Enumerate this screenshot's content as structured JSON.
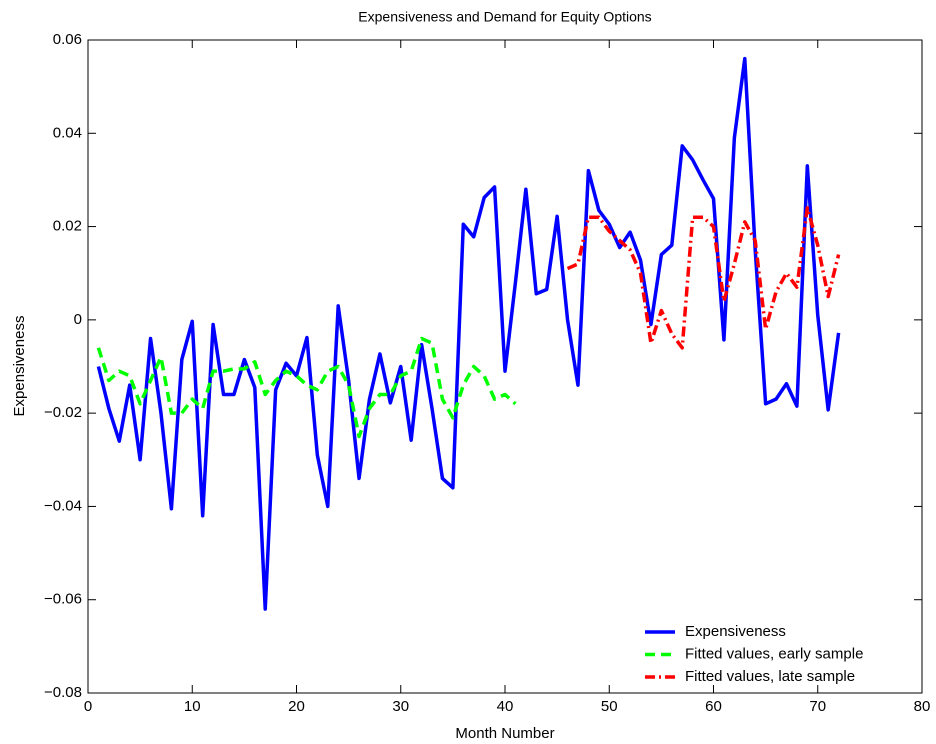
{
  "chart_data": {
    "type": "line",
    "title": "Expensiveness and Demand for Equity Options",
    "x_label": "Month Number",
    "y_label": "Expensiveness",
    "xlim": [
      0,
      80
    ],
    "xticks": [
      0,
      10,
      20,
      30,
      40,
      50,
      60,
      70,
      80
    ],
    "ylim": [
      -0.08,
      0.06
    ],
    "yticks": [
      {
        "value": -0.08,
        "label": "−0.08"
      },
      {
        "value": -0.06,
        "label": "−0.06"
      },
      {
        "value": -0.04,
        "label": "−0.04"
      },
      {
        "value": -0.02,
        "label": "−0.02"
      },
      0,
      0.02,
      0.04,
      0.06
    ],
    "grid": false,
    "legend_position": "lower right",
    "series": [
      {
        "name": "Expensiveness",
        "color": "#0000ff",
        "style": "solid",
        "x": [
          1,
          2,
          3,
          4,
          5,
          6,
          7,
          8,
          9,
          10,
          11,
          12,
          13,
          14,
          15,
          16,
          17,
          18,
          19,
          20,
          21,
          22,
          23,
          24,
          25,
          26,
          27,
          28,
          29,
          30,
          31,
          32,
          33,
          34,
          35,
          36,
          37,
          38,
          39,
          40,
          41,
          42,
          43,
          44,
          45,
          46,
          47,
          48,
          49,
          50,
          51,
          52,
          53,
          54,
          55,
          56,
          57,
          58,
          59,
          60,
          61,
          62,
          63,
          64,
          65,
          66,
          67,
          68,
          69,
          70,
          71,
          72
        ],
        "values": [
          -0.01,
          -0.019,
          -0.026,
          -0.014,
          -0.03,
          -0.004,
          -0.02,
          -0.0405,
          -0.0085,
          -0.0003,
          -0.042,
          -0.001,
          -0.016,
          -0.016,
          -0.0085,
          -0.0145,
          -0.062,
          -0.015,
          -0.0093,
          -0.012,
          -0.0038,
          -0.029,
          -0.04,
          0.003,
          -0.013,
          -0.034,
          -0.017,
          -0.0073,
          -0.0178,
          -0.01,
          -0.0258,
          -0.0053,
          -0.019,
          -0.034,
          -0.036,
          0.0205,
          0.0178,
          0.0262,
          0.0285,
          -0.011,
          0.008,
          0.028,
          0.0056,
          0.0065,
          0.0222,
          0.0,
          -0.014,
          0.032,
          0.0235,
          0.0205,
          0.0155,
          0.0188,
          0.0128,
          -0.001,
          0.014,
          0.016,
          0.0373,
          0.0343,
          0.03,
          0.026,
          -0.0043,
          0.039,
          0.056,
          0.015,
          -0.018,
          -0.017,
          -0.0137,
          -0.0185,
          0.033,
          0.001,
          -0.0193,
          -0.0028
        ]
      },
      {
        "name": "Fitted values, early sample",
        "color": "#00ff00",
        "style": "dashed",
        "x": [
          1,
          2,
          3,
          4,
          5,
          6,
          7,
          8,
          9,
          10,
          11,
          12,
          13,
          14,
          15,
          16,
          17,
          18,
          19,
          20,
          21,
          22,
          23,
          24,
          25,
          26,
          27,
          28,
          29,
          30,
          31,
          32,
          33,
          34,
          35,
          36,
          37,
          38,
          39,
          40,
          41
        ],
        "values": [
          -0.006,
          -0.013,
          -0.011,
          -0.012,
          -0.018,
          -0.013,
          -0.008,
          -0.02,
          -0.02,
          -0.017,
          -0.019,
          -0.011,
          -0.011,
          -0.0105,
          -0.0105,
          -0.009,
          -0.016,
          -0.013,
          -0.011,
          -0.012,
          -0.014,
          -0.015,
          -0.011,
          -0.01,
          -0.014,
          -0.025,
          -0.019,
          -0.016,
          -0.016,
          -0.012,
          -0.011,
          -0.004,
          -0.005,
          -0.017,
          -0.021,
          -0.014,
          -0.01,
          -0.012,
          -0.017,
          -0.016,
          -0.018
        ]
      },
      {
        "name": "Fitted values, late sample",
        "color": "#ff0000",
        "style": "dashdot",
        "x": [
          46,
          47,
          48,
          49,
          50,
          51,
          52,
          53,
          54,
          55,
          56,
          57,
          58,
          59,
          60,
          61,
          62,
          63,
          64,
          65,
          66,
          67,
          68,
          69,
          70,
          71,
          72
        ],
        "values": [
          0.011,
          0.012,
          0.022,
          0.022,
          0.019,
          0.017,
          0.015,
          0.01,
          -0.005,
          0.002,
          -0.003,
          -0.006,
          0.022,
          0.022,
          0.02,
          0.004,
          0.012,
          0.021,
          0.017,
          -0.002,
          0.006,
          0.01,
          0.007,
          0.024,
          0.016,
          0.005,
          0.014
        ]
      }
    ]
  }
}
